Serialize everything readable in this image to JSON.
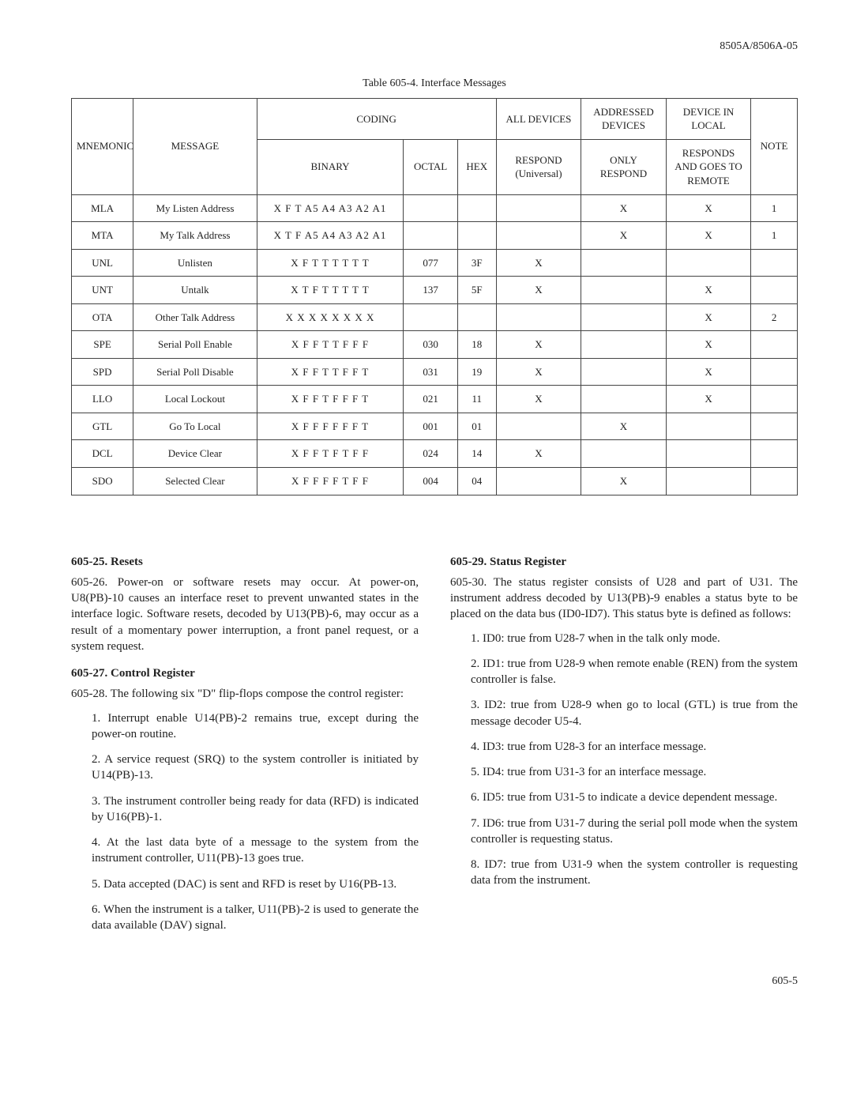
{
  "doc_id": "8505A/8506A-05",
  "table_caption": "Table 605-4. Interface Messages",
  "headers": {
    "mnemonic": "MNEMONIC",
    "message": "MESSAGE",
    "coding": "CODING",
    "binary": "BINARY",
    "octal": "OCTAL",
    "hex": "HEX",
    "all_devices_top": "ALL DEVICES",
    "all_devices_bot": "RESPOND (Universal)",
    "addr_top": "ADDRESSED DEVICES",
    "addr_bot": "ONLY RESPOND",
    "device_top": "DEVICE IN LOCAL",
    "device_bot": "RESPONDS AND GOES TO REMOTE",
    "note": "NOTE"
  },
  "rows": [
    {
      "mnem": "MLA",
      "msg": "My Listen Address",
      "bin": "X F T A5 A4 A3 A2 A1",
      "oct": "",
      "hex": "",
      "all": "",
      "addr": "X",
      "dev": "X",
      "note": "1"
    },
    {
      "mnem": "MTA",
      "msg": "My Talk Address",
      "bin": "X T F A5 A4 A3 A2 A1",
      "oct": "",
      "hex": "",
      "all": "",
      "addr": "X",
      "dev": "X",
      "note": "1"
    },
    {
      "mnem": "UNL",
      "msg": "Unlisten",
      "bin": "X F T T T T T T",
      "oct": "077",
      "hex": "3F",
      "all": "X",
      "addr": "",
      "dev": "",
      "note": ""
    },
    {
      "mnem": "UNT",
      "msg": "Untalk",
      "bin": "X T F T T T T T",
      "oct": "137",
      "hex": "5F",
      "all": "X",
      "addr": "",
      "dev": "X",
      "note": ""
    },
    {
      "mnem": "OTA",
      "msg": "Other Talk Address",
      "bin": "X X X X X X X X",
      "oct": "",
      "hex": "",
      "all": "",
      "addr": "",
      "dev": "X",
      "note": "2"
    },
    {
      "mnem": "SPE",
      "msg": "Serial Poll Enable",
      "bin": "X F F T T F F F",
      "oct": "030",
      "hex": "18",
      "all": "X",
      "addr": "",
      "dev": "X",
      "note": ""
    },
    {
      "mnem": "SPD",
      "msg": "Serial Poll Disable",
      "bin": "X F F T T F F T",
      "oct": "031",
      "hex": "19",
      "all": "X",
      "addr": "",
      "dev": "X",
      "note": ""
    },
    {
      "mnem": "LLO",
      "msg": "Local Lockout",
      "bin": "X F F T F F F T",
      "oct": "021",
      "hex": "11",
      "all": "X",
      "addr": "",
      "dev": "X",
      "note": ""
    },
    {
      "mnem": "GTL",
      "msg": "Go To Local",
      "bin": "X F F F F F F T",
      "oct": "001",
      "hex": "01",
      "all": "",
      "addr": "X",
      "dev": "",
      "note": ""
    },
    {
      "mnem": "DCL",
      "msg": "Device Clear",
      "bin": "X F F T F T F F",
      "oct": "024",
      "hex": "14",
      "all": "X",
      "addr": "",
      "dev": "",
      "note": ""
    },
    {
      "mnem": "SDO",
      "msg": "Selected Clear",
      "bin": "X F F F F T F F",
      "oct": "004",
      "hex": "04",
      "all": "",
      "addr": "X",
      "dev": "",
      "note": ""
    }
  ],
  "left": {
    "h1": "605-25.  Resets",
    "p1": "605-26.  Power-on or software resets may occur. At power-on, U8(PB)-10 causes an interface reset to prevent unwanted states in the interface logic. Software resets, decoded by U13(PB)-6, may occur as a result of a momentary power interruption, a front panel request, or a system request.",
    "h2": "605-27.  Control Register",
    "p2": "605-28.  The following six \"D\" flip-flops compose the control register:",
    "items": [
      "1.  Interrupt enable U14(PB)-2 remains true, except during the power-on routine.",
      "2.  A service request (SRQ) to the system controller is initiated by U14(PB)-13.",
      "3.  The instrument controller being ready for data (RFD) is indicated by U16(PB)-1.",
      "4.  At the last data byte of a message to the system from the instrument controller, U11(PB)-13 goes true.",
      "5.  Data accepted (DAC) is sent and RFD is reset by U16(PB-13.",
      "6.  When the instrument is a talker, U11(PB)-2 is used to generate the data available (DAV) signal."
    ]
  },
  "right": {
    "h1": "605-29.  Status Register",
    "p1": "605-30.  The status register consists of U28 and part of U31. The instrument address decoded by U13(PB)-9 enables a status byte to be placed on the data bus (ID0-ID7). This status byte is defined as follows:",
    "items": [
      "1.  ID0: true from U28-7 when in the talk only mode.",
      "2.  ID1: true from U28-9 when remote enable (REN) from the system controller is false.",
      "3.  ID2: true from U28-9 when go to local (GTL) is true from the message decoder U5-4.",
      "4.  ID3: true from U28-3 for an interface message.",
      "5.  ID4: true from U31-3 for an interface message.",
      "6.  ID5: true from U31-5 to indicate a device dependent message.",
      "7.  ID6: true from U31-7 during the serial poll mode when the system controller is requesting status.",
      "8.  ID7: true from U31-9 when the system controller is requesting data from the instrument."
    ]
  },
  "page_number": "605-5"
}
